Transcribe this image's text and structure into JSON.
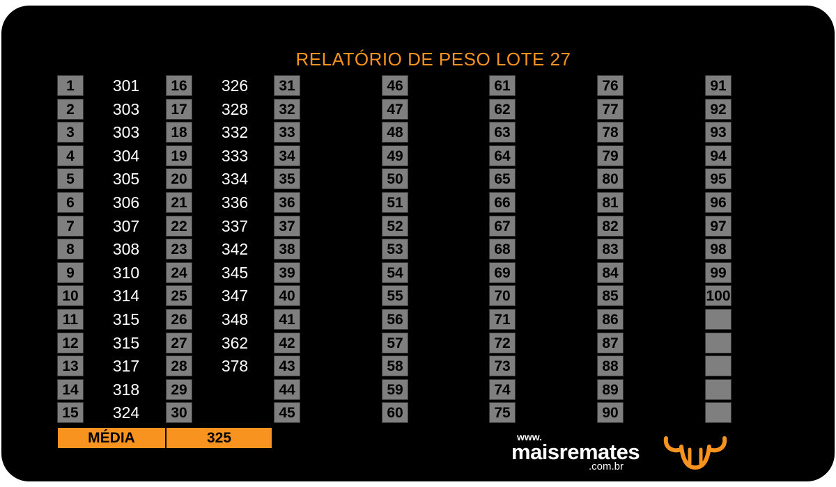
{
  "title": "RELATÓRIO DE PESO LOTE 27",
  "entries": [
    {
      "n": "1",
      "w": "301"
    },
    {
      "n": "2",
      "w": "303"
    },
    {
      "n": "3",
      "w": "303"
    },
    {
      "n": "4",
      "w": "304"
    },
    {
      "n": "5",
      "w": "305"
    },
    {
      "n": "6",
      "w": "306"
    },
    {
      "n": "7",
      "w": "307"
    },
    {
      "n": "8",
      "w": "308"
    },
    {
      "n": "9",
      "w": "310"
    },
    {
      "n": "10",
      "w": "314"
    },
    {
      "n": "11",
      "w": "315"
    },
    {
      "n": "12",
      "w": "315"
    },
    {
      "n": "13",
      "w": "317"
    },
    {
      "n": "14",
      "w": "318"
    },
    {
      "n": "15",
      "w": "324"
    },
    {
      "n": "16",
      "w": "326"
    },
    {
      "n": "17",
      "w": "328"
    },
    {
      "n": "18",
      "w": "332"
    },
    {
      "n": "19",
      "w": "333"
    },
    {
      "n": "20",
      "w": "334"
    },
    {
      "n": "21",
      "w": "336"
    },
    {
      "n": "22",
      "w": "337"
    },
    {
      "n": "23",
      "w": "342"
    },
    {
      "n": "24",
      "w": "345"
    },
    {
      "n": "25",
      "w": "347"
    },
    {
      "n": "26",
      "w": "348"
    },
    {
      "n": "27",
      "w": "362"
    },
    {
      "n": "28",
      "w": "378"
    },
    {
      "n": "29",
      "w": ""
    },
    {
      "n": "30",
      "w": ""
    },
    {
      "n": "31",
      "w": ""
    },
    {
      "n": "32",
      "w": ""
    },
    {
      "n": "33",
      "w": ""
    },
    {
      "n": "34",
      "w": ""
    },
    {
      "n": "35",
      "w": ""
    },
    {
      "n": "36",
      "w": ""
    },
    {
      "n": "37",
      "w": ""
    },
    {
      "n": "38",
      "w": ""
    },
    {
      "n": "39",
      "w": ""
    },
    {
      "n": "40",
      "w": ""
    },
    {
      "n": "41",
      "w": ""
    },
    {
      "n": "42",
      "w": ""
    },
    {
      "n": "43",
      "w": ""
    },
    {
      "n": "44",
      "w": ""
    },
    {
      "n": "45",
      "w": ""
    },
    {
      "n": "46",
      "w": ""
    },
    {
      "n": "47",
      "w": ""
    },
    {
      "n": "48",
      "w": ""
    },
    {
      "n": "49",
      "w": ""
    },
    {
      "n": "50",
      "w": ""
    },
    {
      "n": "51",
      "w": ""
    },
    {
      "n": "52",
      "w": ""
    },
    {
      "n": "53",
      "w": ""
    },
    {
      "n": "54",
      "w": ""
    },
    {
      "n": "55",
      "w": ""
    },
    {
      "n": "56",
      "w": ""
    },
    {
      "n": "57",
      "w": ""
    },
    {
      "n": "58",
      "w": ""
    },
    {
      "n": "59",
      "w": ""
    },
    {
      "n": "60",
      "w": ""
    },
    {
      "n": "61",
      "w": ""
    },
    {
      "n": "62",
      "w": ""
    },
    {
      "n": "63",
      "w": ""
    },
    {
      "n": "64",
      "w": ""
    },
    {
      "n": "65",
      "w": ""
    },
    {
      "n": "66",
      "w": ""
    },
    {
      "n": "67",
      "w": ""
    },
    {
      "n": "68",
      "w": ""
    },
    {
      "n": "69",
      "w": ""
    },
    {
      "n": "70",
      "w": ""
    },
    {
      "n": "71",
      "w": ""
    },
    {
      "n": "72",
      "w": ""
    },
    {
      "n": "73",
      "w": ""
    },
    {
      "n": "74",
      "w": ""
    },
    {
      "n": "75",
      "w": ""
    },
    {
      "n": "76",
      "w": ""
    },
    {
      "n": "77",
      "w": ""
    },
    {
      "n": "78",
      "w": ""
    },
    {
      "n": "79",
      "w": ""
    },
    {
      "n": "80",
      "w": ""
    },
    {
      "n": "81",
      "w": ""
    },
    {
      "n": "82",
      "w": ""
    },
    {
      "n": "83",
      "w": ""
    },
    {
      "n": "84",
      "w": ""
    },
    {
      "n": "85",
      "w": ""
    },
    {
      "n": "86",
      "w": ""
    },
    {
      "n": "87",
      "w": ""
    },
    {
      "n": "88",
      "w": ""
    },
    {
      "n": "89",
      "w": ""
    },
    {
      "n": "90",
      "w": ""
    },
    {
      "n": "91",
      "w": ""
    },
    {
      "n": "92",
      "w": ""
    },
    {
      "n": "93",
      "w": ""
    },
    {
      "n": "94",
      "w": ""
    },
    {
      "n": "95",
      "w": ""
    },
    {
      "n": "96",
      "w": ""
    },
    {
      "n": "97",
      "w": ""
    },
    {
      "n": "98",
      "w": ""
    },
    {
      "n": "99",
      "w": ""
    },
    {
      "n": "100",
      "w": ""
    },
    {
      "n": "",
      "w": ""
    },
    {
      "n": "",
      "w": ""
    },
    {
      "n": "",
      "w": ""
    },
    {
      "n": "",
      "w": ""
    },
    {
      "n": "",
      "w": ""
    }
  ],
  "summary": {
    "label": "MÉDIA",
    "value": "325"
  },
  "brand": {
    "www": "www.",
    "name": "maisremates",
    "domain": ".com.br",
    "logo_icon": "bull-horns-icon"
  },
  "colors": {
    "accent": "#f7931e",
    "cell": "#7f7f7f",
    "background": "#000000"
  }
}
